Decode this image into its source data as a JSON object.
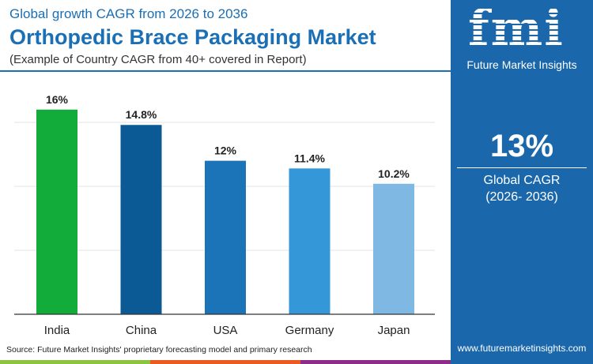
{
  "header": {
    "subtitle_top": "Global growth CAGR from 2026 to 2036",
    "title": "Orthopedic Brace Packaging Market",
    "note": "(Example of Country CAGR from 40+ covered in Report)"
  },
  "panel": {
    "brand": "Future Market Insights",
    "logo_text": "fmi",
    "cagr": "13%",
    "cagr_label": "Global CAGR",
    "cagr_period": "(2026- 2036)",
    "website": "www.futuremarketinsights.com"
  },
  "source": "Source: Future Market Insights' proprietary forecasting model and primary research",
  "chart_data": {
    "type": "bar",
    "categories": [
      "India",
      "China",
      "USA",
      "Germany",
      "Japan"
    ],
    "values": [
      16,
      14.8,
      12,
      11.4,
      10.2
    ],
    "labels": [
      "16%",
      "14.8%",
      "12%",
      "11.4%",
      "10.2%"
    ],
    "colors": [
      "#12ac3a",
      "#0b5a95",
      "#1b74b8",
      "#3497d8",
      "#7fb8e3"
    ],
    "ylim": [
      0,
      17
    ],
    "grid": true,
    "ylabel": "",
    "xlabel": ""
  }
}
